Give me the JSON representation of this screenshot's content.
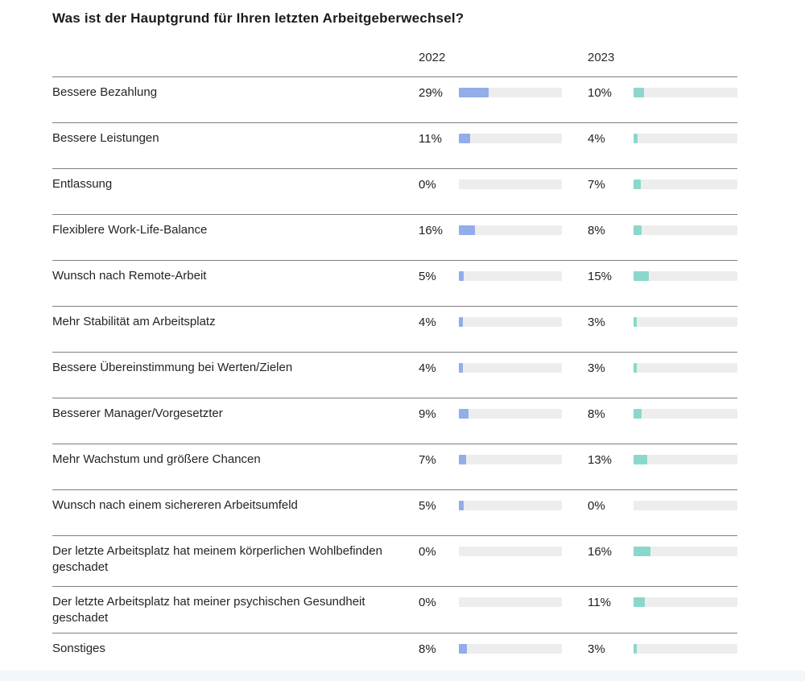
{
  "title": "Was ist der Hauptgrund für Ihren letzten Arbeitgeberwechsel?",
  "columns": {
    "col_2022": "2022",
    "col_2023": "2023"
  },
  "colors": {
    "bar_2022": "#92ade8",
    "bar_2023": "#8bd7cc",
    "track": "#ededed",
    "rule": "#7f7f7f"
  },
  "rows": [
    {
      "label": "Bessere Bezahlung",
      "value_2022": "29%",
      "pct_2022": 29,
      "value_2023": "10%",
      "pct_2023": 10
    },
    {
      "label": "Bessere Leistungen",
      "value_2022": "11%",
      "pct_2022": 11,
      "value_2023": "4%",
      "pct_2023": 4
    },
    {
      "label": "Entlassung",
      "value_2022": "0%",
      "pct_2022": 0,
      "value_2023": "7%",
      "pct_2023": 7
    },
    {
      "label": "Flexiblere Work-Life-Balance",
      "value_2022": "16%",
      "pct_2022": 16,
      "value_2023": "8%",
      "pct_2023": 8
    },
    {
      "label": "Wunsch nach Remote-Arbeit",
      "value_2022": "5%",
      "pct_2022": 5,
      "value_2023": "15%",
      "pct_2023": 15
    },
    {
      "label": "Mehr Stabilität am Arbeitsplatz",
      "value_2022": "4%",
      "pct_2022": 4,
      "value_2023": "3%",
      "pct_2023": 3
    },
    {
      "label": "Bessere Übereinstimmung bei Werten/Zielen",
      "value_2022": "4%",
      "pct_2022": 4,
      "value_2023": "3%",
      "pct_2023": 3
    },
    {
      "label": "Besserer Manager/Vorgesetzter",
      "value_2022": "9%",
      "pct_2022": 9,
      "value_2023": "8%",
      "pct_2023": 8
    },
    {
      "label": "Mehr Wachstum und größere Chancen",
      "value_2022": "7%",
      "pct_2022": 7,
      "value_2023": "13%",
      "pct_2023": 13
    },
    {
      "label": "Wunsch nach einem sichereren Arbeitsumfeld",
      "value_2022": "5%",
      "pct_2022": 5,
      "value_2023": "0%",
      "pct_2023": 0
    },
    {
      "label": "Der letzte Arbeitsplatz hat meinem körperlichen Wohlbefinden geschadet",
      "value_2022": "0%",
      "pct_2022": 0,
      "value_2023": "16%",
      "pct_2023": 16
    },
    {
      "label": "Der letzte Arbeitsplatz hat meiner psychischen Gesundheit geschadet",
      "value_2022": "0%",
      "pct_2022": 0,
      "value_2023": "11%",
      "pct_2023": 11
    },
    {
      "label": "Sonstiges",
      "value_2022": "8%",
      "pct_2022": 8,
      "value_2023": "3%",
      "pct_2023": 3
    }
  ],
  "chart_data": {
    "type": "bar",
    "orientation": "horizontal",
    "title": "Was ist der Hauptgrund für Ihren letzten Arbeitgeberwechsel?",
    "categories": [
      "Bessere Bezahlung",
      "Bessere Leistungen",
      "Entlassung",
      "Flexiblere Work-Life-Balance",
      "Wunsch nach Remote-Arbeit",
      "Mehr Stabilität am Arbeitsplatz",
      "Bessere Übereinstimmung bei Werten/Zielen",
      "Besserer Manager/Vorgesetzter",
      "Mehr Wachstum und größere Chancen",
      "Wunsch nach einem sichereren Arbeitsumfeld",
      "Der letzte Arbeitsplatz hat meinem körperlichen Wohlbefinden geschadet",
      "Der letzte Arbeitsplatz hat meiner psychischen Gesundheit geschadet",
      "Sonstiges"
    ],
    "series": [
      {
        "name": "2022",
        "values": [
          29,
          11,
          0,
          16,
          5,
          4,
          4,
          9,
          7,
          5,
          0,
          0,
          8
        ]
      },
      {
        "name": "2023",
        "values": [
          10,
          4,
          7,
          8,
          15,
          3,
          3,
          8,
          13,
          0,
          16,
          11,
          3
        ]
      }
    ],
    "unit": "%",
    "xlim": [
      0,
      100
    ],
    "value_labels": true,
    "grid": false,
    "legend_position": "column-headers"
  }
}
